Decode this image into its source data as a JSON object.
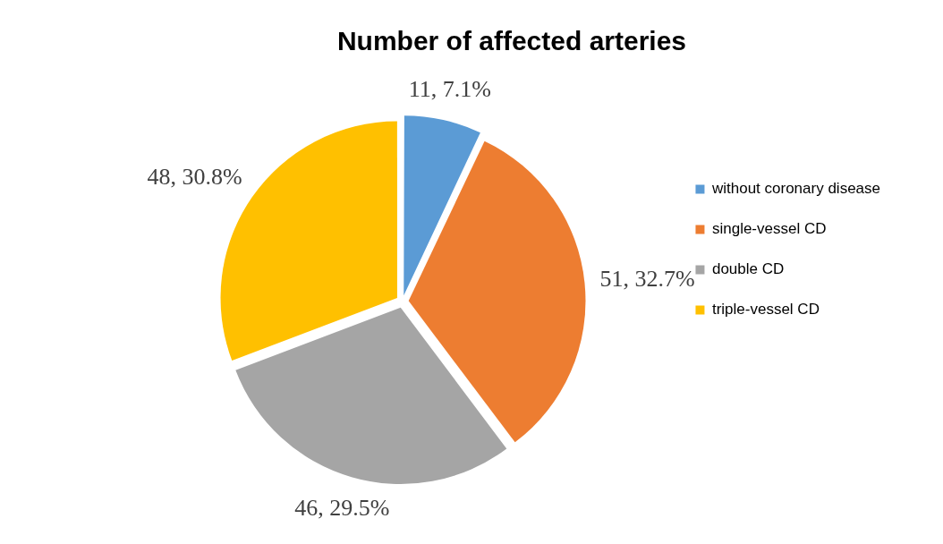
{
  "chart_data": {
    "type": "pie",
    "title": "Number of affected arteries",
    "categories": [
      "without coronary disease",
      "single-vessel CD",
      "double CD",
      "triple-vessel CD"
    ],
    "values": [
      11,
      51,
      46,
      48
    ],
    "colors": [
      "#5b9bd5",
      "#ed7d31",
      "#a5a5a5",
      "#ffc000"
    ],
    "value_labels": [
      "11, 7.1%",
      "51, 32.7%",
      "46, 29.5%",
      "48, 30.8%"
    ],
    "legend": "right"
  }
}
